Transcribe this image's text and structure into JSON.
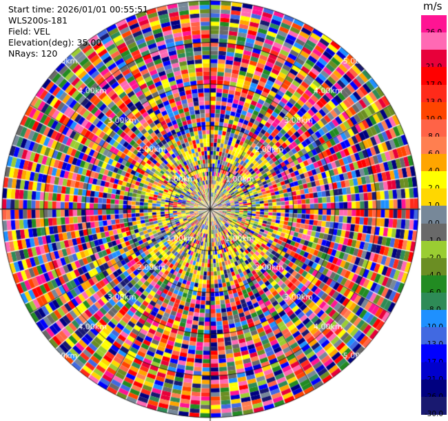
{
  "info": {
    "start_time": "Start time: 2026/01/01 00:55:51",
    "site": "WLS200s-181",
    "field": "Field: VEL",
    "elevation": "Elevation(deg): 35.00",
    "nrays": "NRays: 120"
  },
  "colorbar": {
    "unit": "m/s",
    "bins": [
      {
        "color": "#ff1493",
        "label": "26.0"
      },
      {
        "color": "#ff69b4",
        "label": ""
      },
      {
        "color": "#e8003a",
        "label": "21.0"
      },
      {
        "color": "#ff0000",
        "label": "17.0"
      },
      {
        "color": "#ff2a1a",
        "label": "13.0"
      },
      {
        "color": "#ff4500",
        "label": "10.0"
      },
      {
        "color": "#ff6347",
        "label": "8.0"
      },
      {
        "color": "#ff7f50",
        "label": "6.0"
      },
      {
        "color": "#ffa500",
        "label": "4.0"
      },
      {
        "color": "#ffff00",
        "label": "2.0"
      },
      {
        "color": "#ffd700",
        "label": "1.0"
      },
      {
        "color": "#778899",
        "label": "0.0"
      },
      {
        "color": "#696969",
        "label": "-1.0"
      },
      {
        "color": "#9acd32",
        "label": "-2.0"
      },
      {
        "color": "#6b8e23",
        "label": "-4.0"
      },
      {
        "color": "#228b22",
        "label": "-6.0"
      },
      {
        "color": "#2e8b57",
        "label": "-8.0"
      },
      {
        "color": "#1e90ff",
        "label": "-10.0"
      },
      {
        "color": "#4169e1",
        "label": "-13.0"
      },
      {
        "color": "#0000ff",
        "label": "-17.0"
      },
      {
        "color": "#0000cd",
        "label": "-21.0"
      },
      {
        "color": "#000080",
        "label": "-26.0"
      },
      {
        "color": "#191970",
        "label": "-30.0"
      }
    ]
  },
  "chart_data": {
    "type": "heatmap",
    "subtype": "radar-ppi",
    "field": "VEL",
    "units": "m/s",
    "nrays": 120,
    "elevation_deg": 35.0,
    "range_ring_labels": [
      "1.00km",
      "2.00km",
      "3.00km",
      "4.00km",
      "5.00km"
    ],
    "range_ring_km": [
      1,
      2,
      3,
      4,
      5
    ],
    "max_range_km": 5,
    "cells_per_ray": 50,
    "color_levels": [
      26.0,
      21.0,
      17.0,
      13.0,
      10.0,
      8.0,
      6.0,
      4.0,
      2.0,
      1.0,
      0.0,
      -1.0,
      -2.0,
      -4.0,
      -6.0,
      -8.0,
      -10.0,
      -13.0,
      -17.0,
      -21.0,
      -26.0,
      -30.0
    ],
    "data_description": "Velocity gates appear noisy/random across all bins; shown as pseudo-random field"
  }
}
